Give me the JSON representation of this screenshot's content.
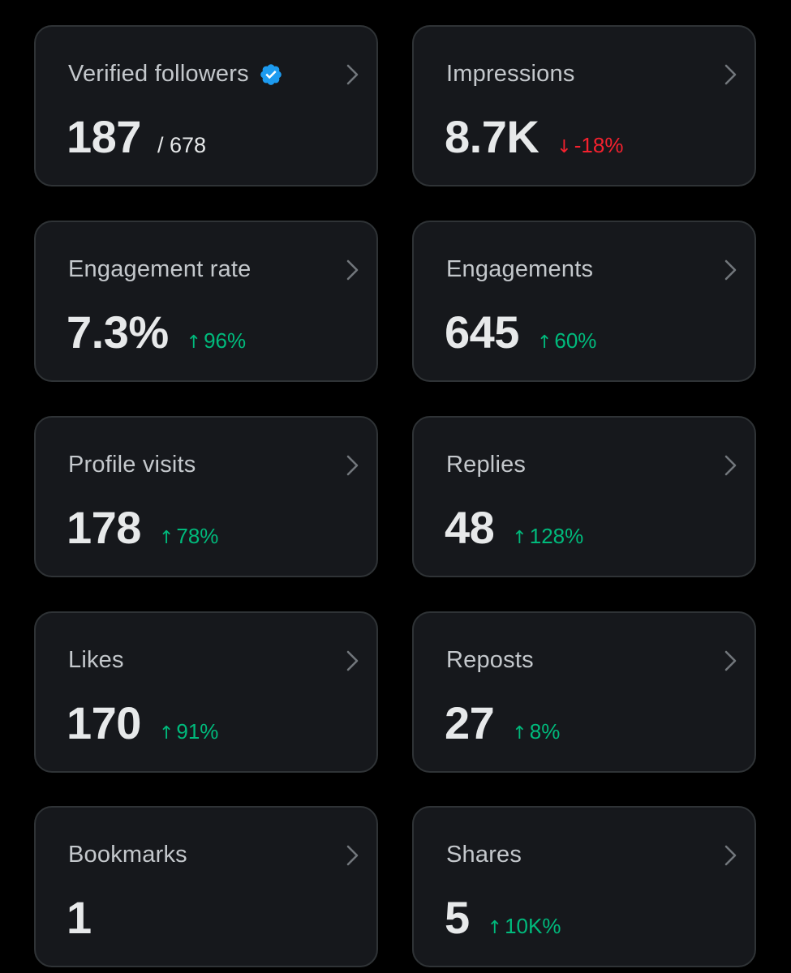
{
  "colors": {
    "background": "#000000",
    "card_background": "#16181c",
    "card_border": "#2f3336",
    "title_text": "#c4c8cc",
    "value_text": "#e7e9ea",
    "positive": "#00ba7c",
    "negative": "#f4212e",
    "verified_badge": "#1d9bf0"
  },
  "cards": [
    {
      "title": "Verified followers",
      "value": "187",
      "total": "/ 678",
      "icon": "verified-badge-icon"
    },
    {
      "title": "Impressions",
      "value": "8.7K",
      "delta": "-18%",
      "direction": "down"
    },
    {
      "title": "Engagement rate",
      "value": "7.3%",
      "delta": "96%",
      "direction": "up"
    },
    {
      "title": "Engagements",
      "value": "645",
      "delta": "60%",
      "direction": "up"
    },
    {
      "title": "Profile visits",
      "value": "178",
      "delta": "78%",
      "direction": "up"
    },
    {
      "title": "Replies",
      "value": "48",
      "delta": "128%",
      "direction": "up"
    },
    {
      "title": "Likes",
      "value": "170",
      "delta": "91%",
      "direction": "up"
    },
    {
      "title": "Reposts",
      "value": "27",
      "delta": "8%",
      "direction": "up"
    },
    {
      "title": "Bookmarks",
      "value": "1"
    },
    {
      "title": "Shares",
      "value": "5",
      "delta": "10K%",
      "direction": "up"
    }
  ],
  "glyphs": {
    "arrow_up": "↑",
    "arrow_down": "↓"
  }
}
